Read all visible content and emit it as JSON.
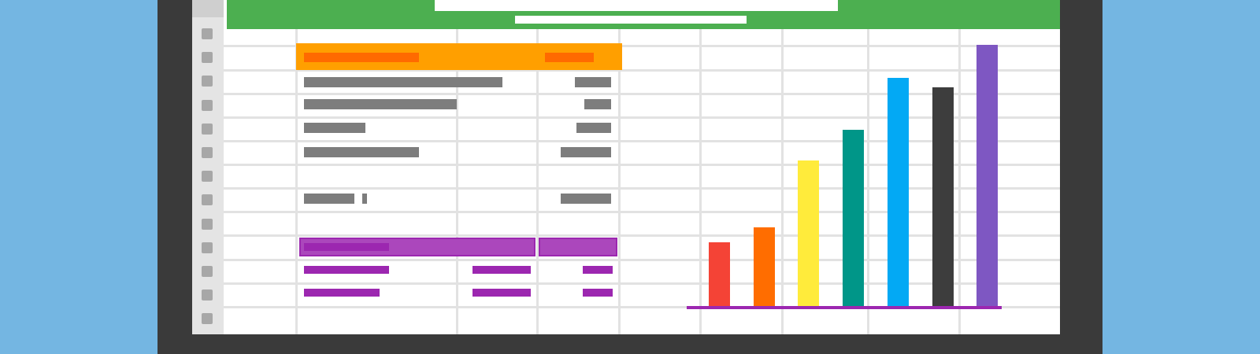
{
  "window": {
    "background": "#74b6e2",
    "bezel_color": "#3a3a3a"
  },
  "spreadsheet": {
    "header_color": "#4caf50",
    "row_count": 13,
    "table_header_color": "#ff9f00",
    "table_header_text_color": "#ff6a00",
    "placeholder_text_color": "#7d7d7d",
    "summary_header_color": "#ab47bc",
    "summary_text_color": "#9c27b0"
  },
  "chart_data": {
    "type": "bar",
    "title": "",
    "categories": [
      "",
      "",
      "",
      "",
      "",
      "",
      ""
    ],
    "values": [
      21,
      26,
      48,
      58,
      75,
      72,
      86
    ],
    "colors": [
      "#f44336",
      "#ff6d00",
      "#ffeb3b",
      "#009688",
      "#03a9f4",
      "#3d3d3d",
      "#7e57c2"
    ],
    "baseline_color": "#9c27b0",
    "xlabel": "",
    "ylabel": "",
    "ylim": [
      0,
      86
    ],
    "grid": false,
    "legend": "none"
  }
}
